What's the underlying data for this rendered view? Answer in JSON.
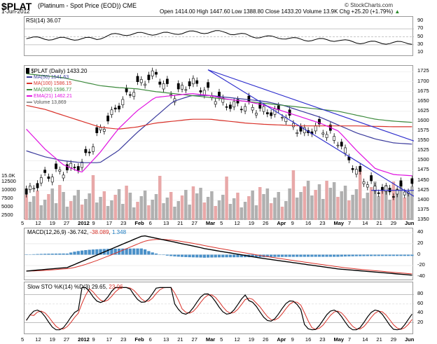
{
  "header": {
    "symbol": "$PLAT",
    "desc": "(Platinum - Spot Price (EOD)) CME",
    "date": "1-Jun-2012",
    "quote": "Open 1414.00  High 1447.60  Low 1388.80  Close 1433.20  Volume 13.9K  Chg +25.20 (+1.79%)",
    "chg_arrow": "▲",
    "watermark": "© StockCharts.com"
  },
  "rsi": {
    "label": "RSI(14) 36.07",
    "ticks": [
      "90",
      "70",
      "50",
      "30",
      "10"
    ]
  },
  "price": {
    "label": "$PLAT (Daily) 1433.20",
    "legend": [
      {
        "text": "MA(50) 1541.63",
        "color": "#3a3a9c"
      },
      {
        "text": "MA(100) 1586.15",
        "color": "#d9322a"
      },
      {
        "text": "MA(200) 1596.77",
        "color": "#3d8a3d"
      },
      {
        "text": "EMA(21) 1462.21",
        "color": "#e010e0"
      },
      {
        "text": "Volume 13,869",
        "color": "#9b9b9b"
      }
    ],
    "ticks": [
      "1725",
      "1700",
      "1675",
      "1650",
      "1625",
      "1600",
      "1575",
      "1550",
      "1525",
      "1500",
      "1475",
      "1450",
      "1425",
      "1400",
      "1375",
      "1350"
    ],
    "vol_ticks": [
      "15.0K",
      "12500",
      "10000",
      "7500",
      "5000",
      "2500"
    ]
  },
  "macd": {
    "label": "MACD(12,26,9)",
    "v1": "-36.742",
    "v2": "-38.089",
    "v3": "1.348",
    "ticks": [
      "40",
      "20",
      "0",
      "-20",
      "-40"
    ]
  },
  "sto": {
    "label": "Slow STO %K(14) %D(3)",
    "v1": "29.65",
    "v2": "23.06",
    "ticks": [
      "80",
      "60",
      "40",
      "20"
    ]
  },
  "xaxis": {
    "labels_a": [
      "5",
      "12",
      "19",
      "27",
      "2012",
      "9",
      "17",
      "23",
      "Feb",
      "6",
      "13",
      "21",
      "27",
      "Mar",
      "5",
      "12",
      "19",
      "26",
      "Apr",
      "9",
      "16",
      "23",
      "May",
      "7",
      "14",
      "21",
      "29",
      "Jun"
    ],
    "labels_b": [
      "5",
      "12",
      "19",
      "27",
      "2012",
      "9",
      "17",
      "23",
      "Feb",
      "6",
      "13",
      "21",
      "27",
      "Mar",
      "5",
      "12",
      "19",
      "26",
      "Apr",
      "9",
      "16",
      "23",
      "May",
      "7",
      "14",
      "21",
      "29",
      "Jun"
    ]
  },
  "chart_data": {
    "type": "line",
    "title": "$PLAT (Platinum - Spot Price (EOD)) CME",
    "x": [
      "2012-01-05",
      "2012-01-12",
      "2012-01-19",
      "2012-01-27",
      "2012-02-06",
      "2012-02-13",
      "2012-02-21",
      "2012-02-27",
      "2012-03-05",
      "2012-03-12",
      "2012-03-19",
      "2012-03-26",
      "2012-04-02",
      "2012-04-09",
      "2012-04-16",
      "2012-04-23",
      "2012-05-01",
      "2012-05-07",
      "2012-05-14",
      "2012-05-21",
      "2012-05-29",
      "2012-06-01"
    ],
    "series": [
      {
        "name": "$PLAT (Daily)",
        "values": [
          1415,
          1460,
          1475,
          1490,
          1575,
          1640,
          1690,
          1720,
          1665,
          1700,
          1670,
          1640,
          1640,
          1625,
          1620,
          1570,
          1585,
          1550,
          1470,
          1430,
          1420,
          1433
        ]
      },
      {
        "name": "MA(50)",
        "values": [
          1525,
          1510,
          1500,
          1495,
          1495,
          1525,
          1570,
          1610,
          1650,
          1665,
          1665,
          1660,
          1655,
          1650,
          1640,
          1625,
          1610,
          1590,
          1570,
          1555,
          1545,
          1542
        ]
      },
      {
        "name": "MA(100)",
        "values": [
          1640,
          1630,
          1615,
          1600,
          1585,
          1580,
          1585,
          1595,
          1600,
          1605,
          1605,
          1600,
          1595,
          1592,
          1590,
          1588,
          1588,
          1588,
          1588,
          1587,
          1586,
          1586
        ]
      },
      {
        "name": "MA(200)",
        "values": [
          1720,
          1715,
          1710,
          1700,
          1690,
          1685,
          1682,
          1675,
          1670,
          1665,
          1660,
          1655,
          1650,
          1645,
          1640,
          1635,
          1630,
          1625,
          1615,
          1605,
          1600,
          1597
        ]
      },
      {
        "name": "EMA(21)",
        "values": [
          1580,
          1530,
          1490,
          1470,
          1520,
          1580,
          1625,
          1660,
          1665,
          1670,
          1665,
          1655,
          1650,
          1640,
          1625,
          1610,
          1595,
          1575,
          1525,
          1480,
          1465,
          1462
        ]
      }
    ],
    "ylim": [
      1350,
      1740
    ],
    "rsi": {
      "name": "RSI(14)",
      "last": 36.07,
      "levels": [
        70,
        30
      ]
    },
    "macd": {
      "name": "MACD(12,26,9)",
      "values": [
        -36.742,
        -38.089,
        1.348
      ]
    },
    "stochastic": {
      "name": "Slow STO %K(14) %D(3)",
      "values": [
        29.65,
        23.06
      ],
      "levels": [
        80,
        20
      ]
    }
  }
}
